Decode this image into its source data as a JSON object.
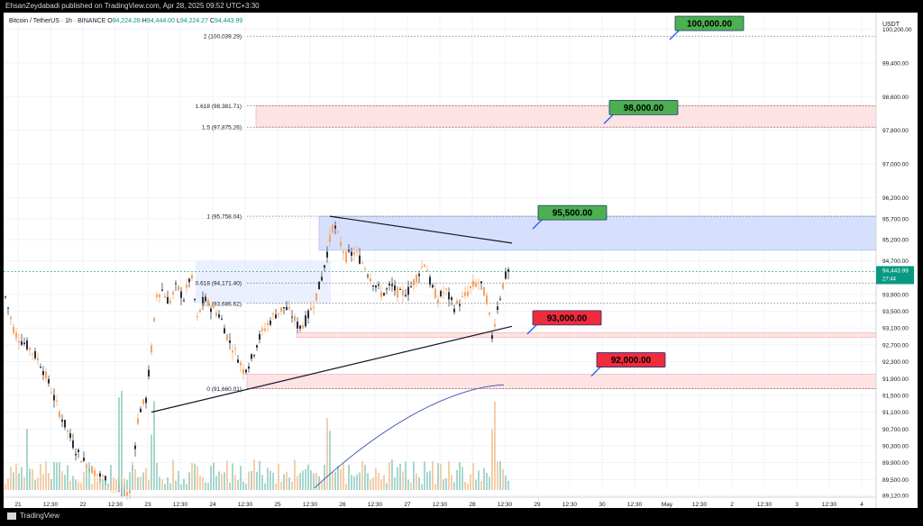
{
  "header": {
    "publisher_line": "EhsanZeydabadi published on TradingView.com, Apr 28, 2025 09:52 UTC+3:30"
  },
  "symbol": {
    "name": "Bitcoin / TetherUS · 1h · BINANCE",
    "o_label": "O",
    "o_value": "94,224.28",
    "h_label": "H",
    "h_value": "94,444.00",
    "l_label": "L",
    "l_value": "94,224.27",
    "c_label": "C",
    "c_value": "94,443.99"
  },
  "currency": "USDT",
  "footer": {
    "brand": "TradingView"
  },
  "colors": {
    "up": "#089981",
    "down": "#f7a35c",
    "candle_body": "#2a2e39",
    "blue_zone": "#2962ff",
    "red_zone": "#f23645",
    "target_green": "#4caf50",
    "target_red": "#ef2b3c",
    "ma_line": "#3d4fb4"
  },
  "chart_data": {
    "type": "candlestick",
    "timeframe": "1h",
    "y_axis": {
      "ylim": [
        89250,
        100600
      ],
      "tick_labels": [
        "100,200.00",
        "99,400.00",
        "98,600.00",
        "97,800.00",
        "97,000.00",
        "96,200.00",
        "95,700.00",
        "95,200.00",
        "94,700.00",
        "93,900.00",
        "93,500.00",
        "93,100.00",
        "92,700.00",
        "92,300.00",
        "91,900.00",
        "91,500.00",
        "91,100.00",
        "90,700.00",
        "90,300.00",
        "89,900.00",
        "89,500.00",
        "89,120.00"
      ],
      "tick_values": [
        100200,
        99400,
        98600,
        97800,
        97000,
        96200,
        95700,
        95200,
        94700,
        93900,
        93500,
        93100,
        92700,
        92300,
        91900,
        91500,
        91100,
        90700,
        90300,
        89900,
        89500,
        89120
      ],
      "current_price_label": "94,443.99",
      "countdown": "27:44"
    },
    "x_axis": {
      "tick_labels": [
        "21",
        "12:30",
        "22",
        "12:30",
        "23",
        "12:30",
        "24",
        "12:30",
        "25",
        "12:30",
        "26",
        "12:30",
        "27",
        "12:30",
        "28",
        "12:30",
        "29",
        "12:30",
        "30",
        "12:30",
        "May",
        "12:30",
        "2",
        "12:30",
        "3",
        "12:30",
        "4"
      ]
    },
    "fib_levels": [
      {
        "label": "2 (100,039.29)",
        "value": 100039.29
      },
      {
        "label": "1.618 (98,381.71)",
        "value": 98381.71
      },
      {
        "label": "1.5 (97,875.26)",
        "value": 97875.26
      },
      {
        "label": "1 (95,758.04)",
        "value": 95758.04
      },
      {
        "label": "0.618 (94,171.40)",
        "value": 94171.4
      },
      {
        "label": "0.5 (93,686.62)",
        "value": 93686.62
      },
      {
        "label": "0 (91,660.01)",
        "value": 91660.01
      }
    ],
    "zones": [
      {
        "kind": "resistance",
        "from": 97875.26,
        "to": 98381.71
      },
      {
        "kind": "supply",
        "from": 95758.04,
        "to": 94950
      },
      {
        "kind": "support",
        "from": 92880,
        "to": 92990
      },
      {
        "kind": "support",
        "from": 91660.01,
        "to": 92000
      }
    ],
    "targets": [
      {
        "label": "100,000.00",
        "value": 100000,
        "kind": "bullish"
      },
      {
        "label": "98,000.00",
        "value": 98000,
        "kind": "bullish"
      },
      {
        "label": "95,500.00",
        "value": 95500,
        "kind": "bullish"
      },
      {
        "label": "93,000.00",
        "value": 93000,
        "kind": "bearish"
      },
      {
        "label": "92,000.00",
        "value": 92000,
        "kind": "bearish"
      }
    ],
    "trendlines": [
      {
        "name": "resistance",
        "from": 95758,
        "to": 95120
      },
      {
        "name": "support",
        "from": 91100,
        "to": 93140
      }
    ],
    "legend": "none",
    "grid": true
  }
}
